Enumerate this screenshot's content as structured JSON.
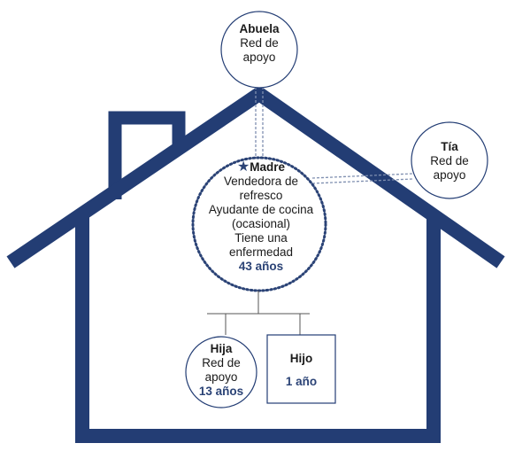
{
  "colors": {
    "house": "#233d74",
    "accent": "#2b4376",
    "text": "#1a1a1a",
    "dotted": "#2b4376",
    "connector": "#7f8fb0"
  },
  "nodes": {
    "abuela": {
      "name": "Abuela",
      "lines": [
        "Red de",
        "apoyo"
      ]
    },
    "tia": {
      "name": "Tía",
      "lines": [
        "Red de",
        "apoyo"
      ]
    },
    "madre": {
      "marker_icon": "star-icon",
      "name": "Madre",
      "lines": [
        "Vendedora de",
        "refresco",
        "Ayudante de cocina",
        "(ocasional)",
        "Tiene una",
        "enfermedad"
      ],
      "age": "43 años"
    },
    "hija": {
      "name": "Hija",
      "lines": [
        "Red de",
        "apoyo"
      ],
      "age": "13 años"
    },
    "hijo": {
      "name": "Hijo",
      "age": "1 año"
    }
  }
}
